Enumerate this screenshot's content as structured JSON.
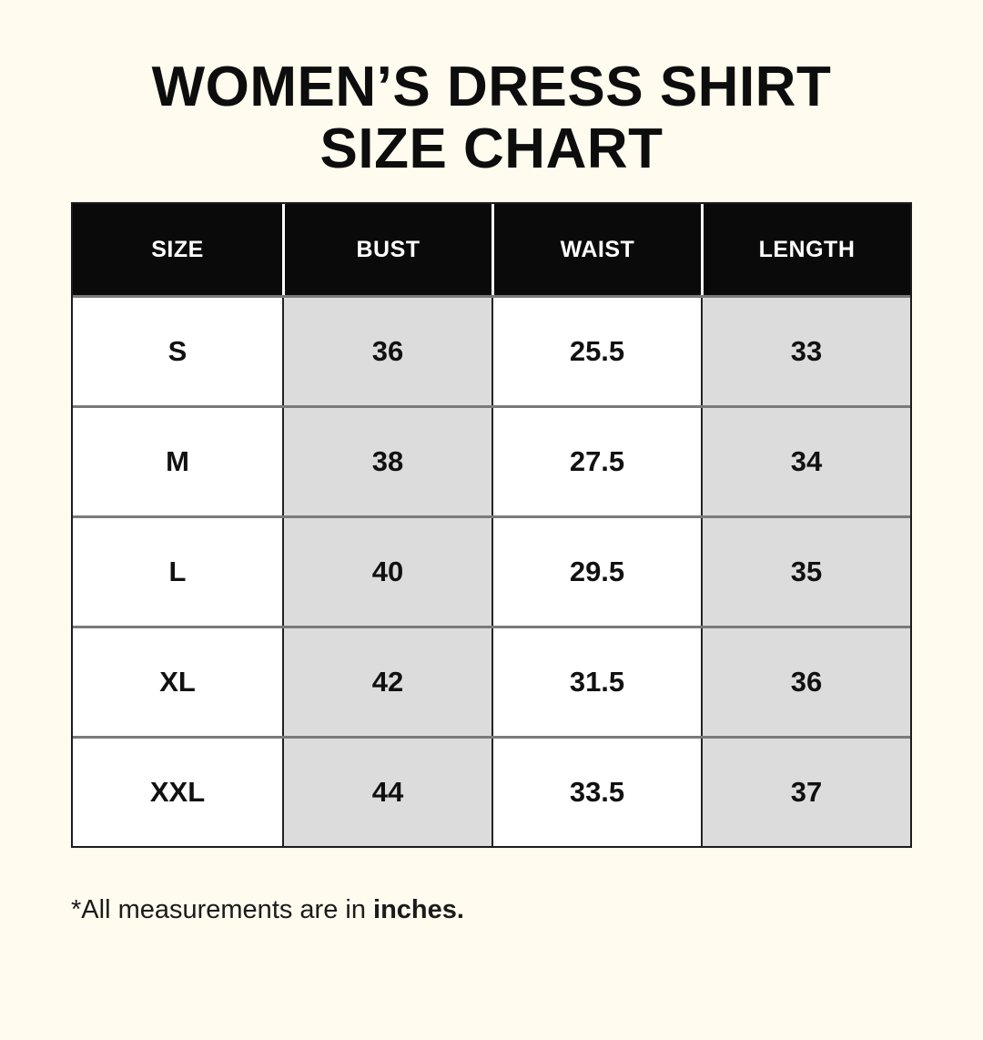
{
  "page": {
    "title_line1": "WOMEN’S DRESS SHIRT",
    "title_line2": "SIZE CHART",
    "footnote_text": "*All measurements are in ",
    "footnote_emphasis": "inches."
  },
  "chart_data": {
    "type": "table",
    "title": "WOMEN’S DRESS SHIRT SIZE CHART",
    "columns": [
      "SIZE",
      "BUST",
      "WAIST",
      "LENGTH"
    ],
    "rows": [
      [
        "S",
        "36",
        "25.5",
        "33"
      ],
      [
        "M",
        "38",
        "27.5",
        "34"
      ],
      [
        "L",
        "40",
        "29.5",
        "35"
      ],
      [
        "XL",
        "42",
        "31.5",
        "36"
      ],
      [
        "XXL",
        "44",
        "33.5",
        "37"
      ]
    ],
    "units": "inches",
    "shaded_columns": [
      1,
      3
    ]
  },
  "colors": {
    "background": "#FFFBEE",
    "header_background": "#0A0A0A",
    "header_text": "#FFFFFF",
    "shaded_cell": "#DCDCDC",
    "plain_cell": "#FFFFFF",
    "row_divider": "#7A7A7A",
    "column_divider": "#222222",
    "text": "#111111"
  }
}
